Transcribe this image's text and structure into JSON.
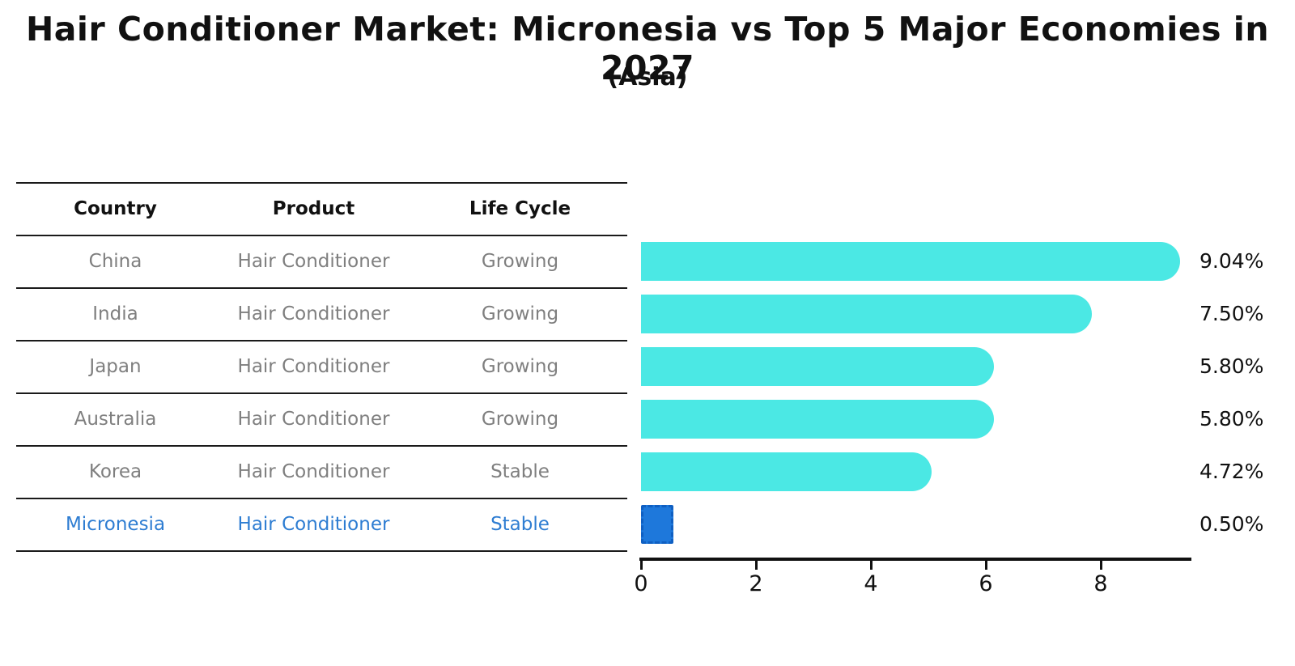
{
  "title": "Hair Conditioner Market: Micronesia vs Top 5 Major Economies in 2027",
  "subtitle": "(Asia)",
  "table": {
    "headers": [
      "Country",
      "Product",
      "Life Cycle"
    ],
    "rows": [
      {
        "country": "China",
        "product": "Hair Conditioner",
        "life_cycle": "Growing"
      },
      {
        "country": "India",
        "product": "Hair Conditioner",
        "life_cycle": "Growing"
      },
      {
        "country": "Japan",
        "product": "Hair Conditioner",
        "life_cycle": "Growing"
      },
      {
        "country": "Australia",
        "product": "Hair Conditioner",
        "life_cycle": "Growing"
      },
      {
        "country": "Korea",
        "product": "Hair Conditioner",
        "life_cycle": "Stable"
      },
      {
        "country": "Micronesia",
        "product": "Hair Conditioner",
        "life_cycle": "Stable"
      }
    ]
  },
  "chart_data": {
    "type": "bar",
    "orientation": "horizontal",
    "title": "Hair Conditioner Market: Micronesia vs Top 5 Major Economies in 2027",
    "subtitle": "(Asia)",
    "categories": [
      "China",
      "India",
      "Japan",
      "Australia",
      "Korea",
      "Micronesia"
    ],
    "values": [
      9.04,
      7.5,
      5.8,
      5.8,
      4.72,
      0.5
    ],
    "value_labels": [
      "9.04%",
      "7.50%",
      "5.80%",
      "5.80%",
      "4.72%",
      "0.50%"
    ],
    "xticks": [
      0,
      2,
      4,
      6,
      8
    ],
    "xlim": [
      0,
      9.6
    ],
    "grid": false,
    "legend_position": "none",
    "bar_color": "#4BE8E4",
    "highlight_color": "#1E78DB",
    "highlight_index": 5,
    "highlight_text_color": "#2E7DD2",
    "muted_text_color": "#7F7F7F"
  }
}
